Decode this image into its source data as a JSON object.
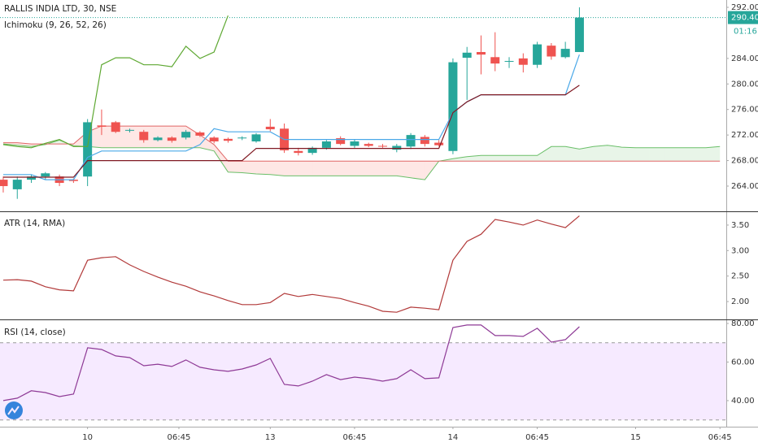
{
  "chart_data": [
    {
      "type": "candlestick",
      "title": "RALLIS INDIA LTD, 30, NSE",
      "subtitle": "Ichimoku (9, 26, 52, 26)",
      "open": [
        265,
        263.5,
        265,
        265.5,
        265.5,
        265,
        265.5,
        273.5,
        274,
        272.7,
        272.5,
        271.2,
        271.6,
        271.6,
        272.4,
        271.6,
        271.4,
        271.5,
        271,
        273.3,
        273,
        269.5,
        269.2,
        270,
        271.5,
        270.3,
        270.6,
        270.3,
        269.7,
        270.2,
        271.7,
        270.8,
        269.5,
        284.1,
        285,
        284.2,
        283.5,
        284,
        283,
        286,
        284.2,
        285
      ],
      "high": [
        265.5,
        265.5,
        265.8,
        266.2,
        265.8,
        265.2,
        274.5,
        276,
        274.2,
        273,
        272.8,
        271.8,
        271.8,
        272.8,
        272.6,
        271.8,
        271.6,
        271.8,
        272.3,
        274.5,
        273.8,
        270,
        270.2,
        271.2,
        271.8,
        271.3,
        270.8,
        270.6,
        270.6,
        272.3,
        272,
        271.2,
        284,
        285.8,
        287.6,
        288.1,
        284.2,
        284.8,
        286.6,
        286.4,
        286.6,
        292
      ],
      "low": [
        263,
        262,
        264.5,
        265,
        264,
        264.5,
        264,
        272,
        272.3,
        272.4,
        270.8,
        271,
        270.8,
        271.3,
        271.7,
        270.7,
        270.8,
        271.2,
        270.8,
        272.6,
        269.2,
        268.8,
        268.9,
        269.7,
        270.4,
        270,
        270.1,
        270,
        269.3,
        269.8,
        270.2,
        270.2,
        269,
        277.5,
        281.5,
        282,
        282.5,
        281.8,
        282.5,
        283.8,
        284,
        285
      ],
      "close": [
        264,
        265,
        265.5,
        266,
        264.5,
        264.8,
        274,
        273.3,
        272.5,
        272.8,
        271.2,
        271.6,
        271.1,
        272.5,
        271.9,
        271,
        271.1,
        271.6,
        272.1,
        272.9,
        269.6,
        269.2,
        270,
        271,
        270.6,
        271,
        270.3,
        270.2,
        270.3,
        272,
        270.6,
        270.4,
        283.4,
        284.9,
        284.6,
        283.2,
        283.6,
        283,
        286.2,
        284.3,
        285.5,
        290.4
      ],
      "up_color": "#26a69a",
      "down_color": "#ef5350",
      "lines": [
        {
          "color": "#4aa8e8",
          "values": [
            265.8,
            265.8,
            265.8,
            265,
            265,
            265,
            268.5,
            269.5,
            269.5,
            269.5,
            269.5,
            269.5,
            269.5,
            269.5,
            270.5,
            273,
            272.5,
            272.5,
            272.5,
            272.5,
            271.3,
            271.3,
            271.3,
            271.3,
            271.3,
            271.3,
            271.3,
            271.3,
            271.3,
            271.3,
            271.3,
            271.3,
            275.5,
            277.2,
            278.3,
            278.3,
            278.3,
            278.3,
            278.3,
            278.3,
            278.3,
            284.6
          ]
        },
        {
          "color": "#801922",
          "values": [
            265.4,
            265.4,
            265.4,
            265.4,
            265.4,
            265.4,
            268,
            268,
            268,
            268,
            268,
            268,
            268,
            268,
            268,
            268,
            268,
            268,
            269.9,
            269.9,
            269.9,
            269.9,
            269.9,
            269.9,
            269.9,
            269.9,
            269.9,
            269.9,
            269.9,
            269.9,
            269.9,
            269.9,
            275.5,
            277.2,
            278.3,
            278.3,
            278.3,
            278.3,
            278.3,
            278.3,
            278.3,
            279.8
          ]
        },
        {
          "color": "#5ea832",
          "values": [
            270.5,
            270.2,
            270,
            270.7,
            271.3,
            270.2,
            270.2,
            283,
            284.1,
            284.1,
            283,
            283,
            282.7,
            285.9,
            284,
            285,
            290.7
          ]
        }
      ],
      "cloud": {
        "span_a_color": "#6abf69",
        "span_b_color": "#e06666",
        "up_fill": "rgba(76,175,80,0.13)",
        "down_fill": "rgba(244,67,54,0.13)",
        "span_a": [
          270.6,
          270.4,
          270.2,
          270.5,
          271.2,
          270.3,
          270.2,
          270,
          270,
          270,
          270,
          270,
          270,
          270,
          270,
          269.5,
          266.2,
          266.1,
          265.9,
          265.8,
          265.6,
          265.6,
          265.6,
          265.6,
          265.6,
          265.6,
          265.6,
          265.6,
          265.6,
          265.3,
          265,
          267.9,
          268.3,
          268.6,
          268.8,
          268.8,
          268.8,
          268.8,
          268.8,
          270.2,
          270.2,
          269.8,
          270.2,
          270.4,
          270.1,
          270,
          270,
          270,
          270,
          270,
          270,
          270.2
        ],
        "span_b": [
          270.8,
          270.8,
          270.6,
          270.6,
          270.6,
          270.6,
          272.5,
          273.4,
          273.4,
          273.4,
          273.4,
          273.4,
          273.4,
          273.4,
          272,
          270.5,
          267.9,
          267.9,
          267.9,
          267.9,
          267.9,
          267.9,
          267.9,
          267.9,
          267.9,
          267.9,
          267.9,
          267.9,
          267.9,
          267.9,
          267.9,
          267.9,
          267.9,
          267.9,
          267.9,
          267.9,
          267.9,
          267.9,
          267.9,
          267.9,
          267.9,
          267.9,
          267.9,
          267.9,
          267.9,
          267.9,
          267.9,
          267.9,
          267.9,
          267.9,
          267.9,
          267.9
        ]
      },
      "last_price": {
        "value": 290.4,
        "label": "290.40"
      },
      "countdown": "01:16",
      "xlim": [
        -0.23,
        51.45
      ],
      "ylim": [
        260.05,
        293.15
      ],
      "yticks": [
        {
          "value": 264,
          "label": "264.00"
        },
        {
          "value": 268,
          "label": "268.00"
        },
        {
          "value": 272,
          "label": "272.00"
        },
        {
          "value": 276,
          "label": "276.00"
        },
        {
          "value": 280,
          "label": "280.00"
        },
        {
          "value": 284,
          "label": "284.00"
        },
        {
          "value": 292,
          "label": "292.00"
        }
      ]
    },
    {
      "type": "line",
      "title": "ATR (14, RMA)",
      "color": "#b23a3a",
      "values": [
        2.42,
        2.43,
        2.4,
        2.29,
        2.23,
        2.21,
        2.81,
        2.86,
        2.88,
        2.72,
        2.59,
        2.48,
        2.38,
        2.3,
        2.19,
        2.11,
        2.02,
        1.94,
        1.94,
        1.98,
        2.16,
        2.1,
        2.14,
        2.1,
        2.06,
        1.98,
        1.91,
        1.81,
        1.79,
        1.89,
        1.87,
        1.84,
        2.81,
        3.18,
        3.32,
        3.61,
        3.56,
        3.5,
        3.6,
        3.52,
        3.45,
        3.68
      ],
      "xlim": [
        -0.23,
        51.45
      ],
      "ylim": [
        1.65,
        3.77
      ],
      "yticks": [
        {
          "value": 2,
          "label": "2.00"
        },
        {
          "value": 2.5,
          "label": "2.50"
        },
        {
          "value": 3,
          "label": "3.00"
        },
        {
          "value": 3.5,
          "label": "3.50"
        }
      ]
    },
    {
      "type": "line",
      "title": "RSI (14, close)",
      "color": "#8e3a96",
      "values": [
        40.0,
        41.3,
        45.1,
        44.2,
        42.1,
        43.4,
        67.4,
        66.5,
        63.2,
        62.3,
        58.1,
        58.9,
        57.7,
        61.1,
        57.3,
        56.0,
        55.2,
        56.4,
        58.5,
        61.9,
        48.4,
        47.6,
        50.1,
        53.5,
        50.9,
        52.2,
        51.4,
        50.1,
        51.4,
        56.0,
        51.4,
        51.8,
        77.9,
        79.2,
        79.2,
        73.7,
        73.7,
        73.3,
        77.5,
        70.3,
        71.6,
        78.3
      ],
      "band": [
        30,
        70
      ],
      "band_fill": "rgba(153,21,255,0.09)",
      "xlim": [
        -0.23,
        51.45
      ],
      "ylim": [
        26.5,
        82.1
      ],
      "yticks": [
        {
          "value": 40,
          "label": "40.00"
        },
        {
          "value": 60,
          "label": "60.00"
        },
        {
          "value": 80,
          "label": "80.00"
        }
      ],
      "xticks": [
        {
          "value": 6,
          "label": "10"
        },
        {
          "value": 12.5,
          "label": "06:45"
        },
        {
          "value": 19,
          "label": "13"
        },
        {
          "value": 25,
          "label": "06:45"
        },
        {
          "value": 32,
          "label": "14"
        },
        {
          "value": 38,
          "label": "06:45"
        },
        {
          "value": 45,
          "label": "15"
        },
        {
          "value": 51,
          "label": "06:45"
        }
      ]
    }
  ]
}
